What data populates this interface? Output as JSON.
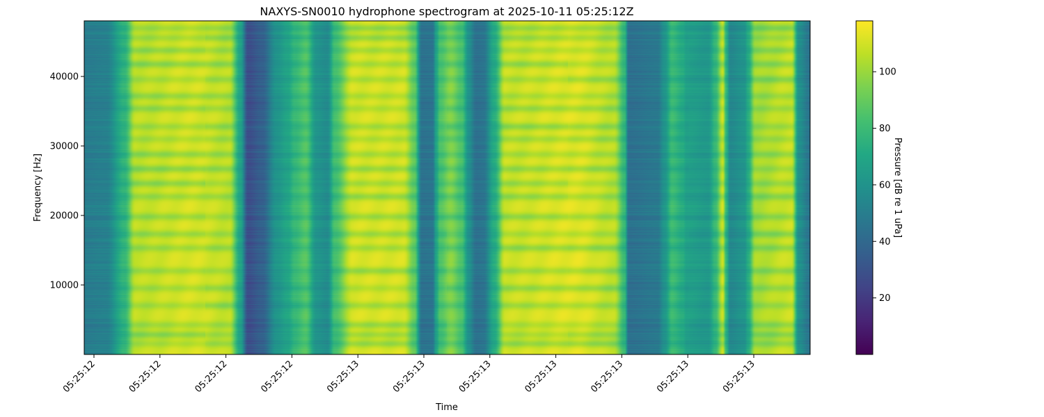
{
  "chart_data": {
    "type": "heatmap",
    "title": "NAXYS-SN0010 hydrophone spectrogram at 2025-10-11 05:25:12Z",
    "xlabel": "Time",
    "ylabel": "Frequency [Hz]",
    "colorbar_label": "Pressure [dB re 1 uPa]",
    "colormap": "viridis",
    "x_tick_labels": [
      "05:25:12",
      "05:25:12",
      "05:25:12",
      "05:25:12",
      "05:25:13",
      "05:25:13",
      "05:25:13",
      "05:25:13",
      "05:25:13",
      "05:25:13",
      "05:25:13"
    ],
    "y_ticks": [
      10000,
      20000,
      30000,
      40000
    ],
    "y_tick_labels": [
      "10000",
      "20000",
      "30000",
      "40000"
    ],
    "ylim": [
      0,
      48000
    ],
    "colorbar_ticks": [
      20,
      40,
      60,
      80,
      100
    ],
    "colorbar_tick_labels": [
      "20",
      "40",
      "60",
      "80",
      "100"
    ],
    "clim": [
      0,
      118
    ],
    "time_profile_db": [
      [
        0.0,
        50
      ],
      [
        0.03,
        52
      ],
      [
        0.055,
        78
      ],
      [
        0.07,
        108
      ],
      [
        0.15,
        112
      ],
      [
        0.2,
        108
      ],
      [
        0.215,
        70
      ],
      [
        0.225,
        28
      ],
      [
        0.245,
        36
      ],
      [
        0.265,
        62
      ],
      [
        0.28,
        70
      ],
      [
        0.29,
        80
      ],
      [
        0.305,
        88
      ],
      [
        0.32,
        62
      ],
      [
        0.335,
        58
      ],
      [
        0.345,
        84
      ],
      [
        0.37,
        112
      ],
      [
        0.44,
        112
      ],
      [
        0.455,
        92
      ],
      [
        0.465,
        45
      ],
      [
        0.48,
        46
      ],
      [
        0.485,
        70
      ],
      [
        0.49,
        86
      ],
      [
        0.505,
        98
      ],
      [
        0.52,
        86
      ],
      [
        0.53,
        60
      ],
      [
        0.54,
        44
      ],
      [
        0.55,
        46
      ],
      [
        0.565,
        74
      ],
      [
        0.58,
        110
      ],
      [
        0.68,
        114
      ],
      [
        0.73,
        108
      ],
      [
        0.745,
        80
      ],
      [
        0.75,
        44
      ],
      [
        0.79,
        48
      ],
      [
        0.8,
        62
      ],
      [
        0.81,
        82
      ],
      [
        0.825,
        74
      ],
      [
        0.83,
        68
      ],
      [
        0.86,
        64
      ],
      [
        0.87,
        80
      ],
      [
        0.88,
        110
      ],
      [
        0.885,
        78
      ],
      [
        0.89,
        56
      ],
      [
        0.91,
        62
      ],
      [
        0.915,
        74
      ],
      [
        0.925,
        104
      ],
      [
        0.975,
        110
      ],
      [
        0.985,
        60
      ],
      [
        1.0,
        46
      ]
    ],
    "frequency_bands_hz": [
      1500,
      2800,
      4200,
      7000,
      9500,
      12000,
      15300,
      17300,
      19800,
      22700,
      24600,
      26700,
      28800,
      31000,
      32800,
      35400,
      37200,
      39600,
      41800,
      43800,
      45600,
      47000
    ]
  }
}
